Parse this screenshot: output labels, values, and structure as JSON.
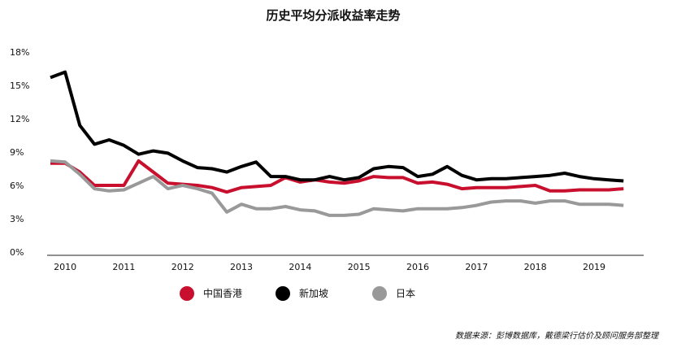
{
  "chart_data": {
    "type": "line",
    "title": "历史平均分派收益率走势",
    "xlabel": "",
    "ylabel": "",
    "ylim": [
      0,
      18
    ],
    "xlim": [
      2009.75,
      2019.65
    ],
    "y_ticks": [
      0,
      3,
      6,
      9,
      12,
      15,
      18
    ],
    "y_tick_labels": [
      "0%",
      "3%",
      "6%",
      "9%",
      "12%",
      "15%",
      "18%"
    ],
    "x_ticks": [
      2010,
      2011,
      2012,
      2013,
      2014,
      2015,
      2016,
      2017,
      2018,
      2019
    ],
    "x_tick_labels": [
      "2010",
      "2011",
      "2012",
      "2013",
      "2014",
      "2015",
      "2016",
      "2017",
      "2018",
      "2019"
    ],
    "grid": false,
    "legend_position": "bottom",
    "series": [
      {
        "name": "中国香港",
        "color": "#c8102e",
        "x": [
          2009.75,
          2010.0,
          2010.25,
          2010.5,
          2010.75,
          2011.0,
          2011.25,
          2011.5,
          2011.75,
          2012.0,
          2012.25,
          2012.5,
          2012.75,
          2013.0,
          2013.25,
          2013.5,
          2013.75,
          2014.0,
          2014.25,
          2014.5,
          2014.75,
          2015.0,
          2015.25,
          2015.5,
          2015.75,
          2016.0,
          2016.25,
          2016.5,
          2016.75,
          2017.0,
          2017.25,
          2017.5,
          2017.75,
          2018.0,
          2018.25,
          2018.5,
          2018.75,
          2019.0,
          2019.25,
          2019.5
        ],
        "values": [
          8.0,
          8.0,
          7.2,
          6.0,
          6.0,
          6.0,
          8.2,
          7.2,
          6.2,
          6.1,
          6.0,
          5.8,
          5.4,
          5.8,
          5.9,
          6.0,
          6.7,
          6.3,
          6.5,
          6.3,
          6.2,
          6.4,
          6.8,
          6.7,
          6.7,
          6.2,
          6.3,
          6.1,
          5.7,
          5.8,
          5.8,
          5.8,
          5.9,
          6.0,
          5.5,
          5.5,
          5.6,
          5.6,
          5.6,
          5.7
        ]
      },
      {
        "name": "新加坡",
        "color": "#000000",
        "x": [
          2009.75,
          2010.0,
          2010.25,
          2010.5,
          2010.75,
          2011.0,
          2011.25,
          2011.5,
          2011.75,
          2012.0,
          2012.25,
          2012.5,
          2012.75,
          2013.0,
          2013.25,
          2013.5,
          2013.75,
          2014.0,
          2014.25,
          2014.5,
          2014.75,
          2015.0,
          2015.25,
          2015.5,
          2015.75,
          2016.0,
          2016.25,
          2016.5,
          2016.75,
          2017.0,
          2017.25,
          2017.5,
          2017.75,
          2018.0,
          2018.25,
          2018.5,
          2018.75,
          2019.0,
          2019.25,
          2019.5
        ],
        "values": [
          15.7,
          16.2,
          11.4,
          9.7,
          10.1,
          9.6,
          8.8,
          9.1,
          8.9,
          8.2,
          7.6,
          7.5,
          7.2,
          7.7,
          8.1,
          6.8,
          6.8,
          6.5,
          6.5,
          6.8,
          6.5,
          6.7,
          7.5,
          7.7,
          7.6,
          6.8,
          7.0,
          7.7,
          6.9,
          6.5,
          6.6,
          6.6,
          6.7,
          6.8,
          6.9,
          7.1,
          6.8,
          6.6,
          6.5,
          6.4
        ]
      },
      {
        "name": "日本",
        "color": "#999999",
        "x": [
          2009.75,
          2010.0,
          2010.25,
          2010.5,
          2010.75,
          2011.0,
          2011.25,
          2011.5,
          2011.75,
          2012.0,
          2012.25,
          2012.5,
          2012.75,
          2013.0,
          2013.25,
          2013.5,
          2013.75,
          2014.0,
          2014.25,
          2014.5,
          2014.75,
          2015.0,
          2015.25,
          2015.5,
          2015.75,
          2016.0,
          2016.25,
          2016.5,
          2016.75,
          2017.0,
          2017.25,
          2017.5,
          2017.75,
          2018.0,
          2018.25,
          2018.5,
          2018.75,
          2019.0,
          2019.25,
          2019.5
        ],
        "values": [
          8.2,
          8.1,
          7.0,
          5.7,
          5.5,
          5.6,
          6.2,
          6.8,
          5.7,
          6.0,
          5.7,
          5.3,
          3.6,
          4.3,
          3.9,
          3.9,
          4.1,
          3.8,
          3.7,
          3.3,
          3.3,
          3.4,
          3.9,
          3.8,
          3.7,
          3.9,
          3.9,
          3.9,
          4.0,
          4.2,
          4.5,
          4.6,
          4.6,
          4.4,
          4.6,
          4.6,
          4.3,
          4.3,
          4.3,
          4.2
        ]
      }
    ]
  },
  "source_note": "数据来源：彭博数据库，戴德梁行估价及顾问服务部整理"
}
